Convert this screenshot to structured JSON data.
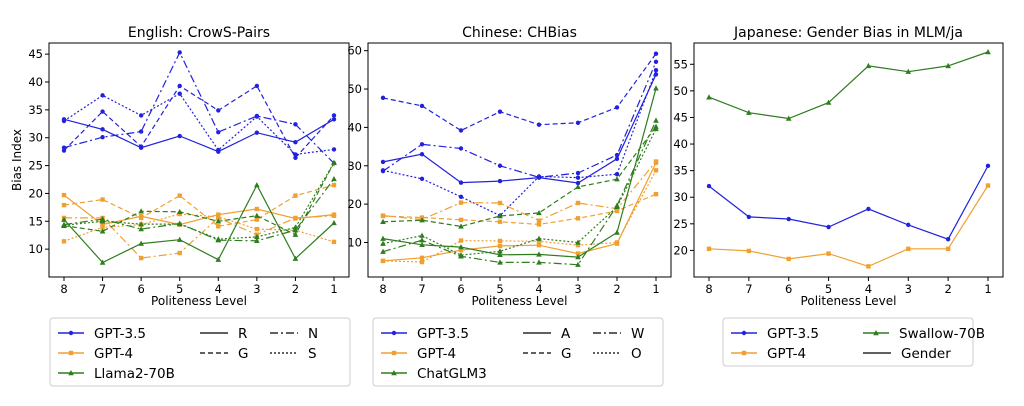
{
  "figure": {
    "y_axis_label": "Bias Index",
    "x_axis_label": "Politeness Level"
  },
  "colors": {
    "gpt35": "#2222dd",
    "gpt4": "#f0a030",
    "third": "#2e7d1e"
  },
  "chart_data": [
    {
      "type": "line",
      "title": "English: CrowS-Pairs",
      "xlabel": "Politeness Level",
      "ylabel": "Bias Index",
      "categories": [
        "8",
        "7",
        "6",
        "5",
        "4",
        "3",
        "2",
        "1"
      ],
      "ylim": [
        5,
        47
      ],
      "yticks": [
        10,
        15,
        20,
        25,
        30,
        35,
        40,
        45
      ],
      "legend_models": [
        "GPT-3.5",
        "GPT-4",
        "Llama2-70B"
      ],
      "legend_styles": [
        "R",
        "G",
        "N",
        "S"
      ],
      "series": [
        {
          "model": "GPT-3.5",
          "style": "R",
          "values": [
            33.3,
            31.5,
            28.2,
            30.3,
            27.5,
            30.9,
            29.2,
            33.3
          ]
        },
        {
          "model": "GPT-3.5",
          "style": "G",
          "values": [
            27.7,
            34.7,
            28.4,
            39.3,
            34.9,
            39.3,
            26.4,
            34.0
          ]
        },
        {
          "model": "GPT-3.5",
          "style": "N",
          "values": [
            28.2,
            30.1,
            31.1,
            45.3,
            31.0,
            33.9,
            32.4,
            25.4
          ]
        },
        {
          "model": "GPT-3.5",
          "style": "S",
          "values": [
            33.0,
            37.6,
            34.0,
            37.9,
            27.8,
            33.8,
            27.0,
            27.9
          ]
        },
        {
          "model": "GPT-4",
          "style": "R",
          "values": [
            19.7,
            14.4,
            15.9,
            14.4,
            16.2,
            17.2,
            15.5,
            16.2
          ]
        },
        {
          "model": "GPT-4",
          "style": "G",
          "values": [
            17.9,
            18.9,
            15.6,
            19.6,
            14.1,
            15.3,
            19.6,
            21.5
          ]
        },
        {
          "model": "GPT-4",
          "style": "N",
          "values": [
            15.6,
            15.6,
            8.4,
            9.3,
            15.6,
            12.6,
            15.6,
            16.0
          ]
        },
        {
          "model": "GPT-4",
          "style": "S",
          "values": [
            11.4,
            13.9,
            14.4,
            16.3,
            15.8,
            13.6,
            13.4,
            11.3
          ]
        },
        {
          "model": "Llama2-70B",
          "style": "R",
          "values": [
            15.3,
            7.6,
            11.0,
            11.7,
            8.1,
            21.5,
            8.3,
            14.7
          ]
        },
        {
          "model": "Llama2-70B",
          "style": "G",
          "values": [
            14.2,
            13.2,
            16.8,
            16.7,
            15.0,
            16.0,
            12.6,
            25.5
          ]
        },
        {
          "model": "Llama2-70B",
          "style": "N",
          "values": [
            14.4,
            15.4,
            13.6,
            14.6,
            11.6,
            11.5,
            13.4,
            22.6
          ]
        },
        {
          "model": "Llama2-70B",
          "style": "S",
          "values": [
            14.3,
            15.0,
            14.5,
            14.5,
            11.8,
            12.2,
            13.9,
            25.5
          ]
        }
      ]
    },
    {
      "type": "line",
      "title": "Chinese: CHBias",
      "xlabel": "Politeness Level",
      "ylabel": "",
      "categories": [
        "8",
        "7",
        "6",
        "5",
        "4",
        "3",
        "2",
        "1"
      ],
      "ylim": [
        1,
        62
      ],
      "yticks": [
        10,
        20,
        30,
        40,
        50,
        60
      ],
      "legend_models": [
        "GPT-3.5",
        "GPT-4",
        "ChatGLM3"
      ],
      "legend_styles": [
        "A",
        "G",
        "W",
        "O"
      ],
      "series": [
        {
          "model": "GPT-3.5",
          "style": "A",
          "values": [
            31.0,
            33.0,
            25.6,
            26.0,
            26.9,
            25.5,
            31.8,
            53.8
          ]
        },
        {
          "model": "GPT-3.5",
          "style": "G",
          "values": [
            47.7,
            45.6,
            39.2,
            44.1,
            40.7,
            41.2,
            45.2,
            59.2
          ]
        },
        {
          "model": "GPT-3.5",
          "style": "W",
          "values": [
            28.6,
            35.6,
            34.5,
            30.0,
            27.0,
            28.1,
            32.8,
            57.1
          ]
        },
        {
          "model": "GPT-3.5",
          "style": "O",
          "values": [
            28.8,
            26.6,
            21.9,
            17.0,
            27.2,
            26.9,
            27.8,
            54.9
          ]
        },
        {
          "model": "GPT-4",
          "style": "A",
          "values": [
            5.2,
            6.0,
            8.0,
            9.1,
            9.3,
            7.1,
            9.7,
            30.8
          ]
        },
        {
          "model": "GPT-4",
          "style": "G",
          "values": [
            16.9,
            16.5,
            15.9,
            15.4,
            14.7,
            16.3,
            18.2,
            22.6
          ]
        },
        {
          "model": "GPT-4",
          "style": "W",
          "values": [
            17.0,
            16.0,
            20.4,
            20.3,
            15.7,
            20.3,
            18.8,
            31.1
          ]
        },
        {
          "model": "GPT-4",
          "style": "O",
          "values": [
            5.2,
            4.9,
            10.5,
            10.4,
            10.3,
            9.3,
            10.0,
            28.8
          ]
        },
        {
          "model": "ChatGLM3",
          "style": "A",
          "values": [
            11.0,
            9.4,
            8.8,
            6.8,
            6.9,
            6.2,
            12.6,
            50.2
          ]
        },
        {
          "model": "ChatGLM3",
          "style": "G",
          "values": [
            15.4,
            15.8,
            14.2,
            16.9,
            17.7,
            24.5,
            26.5,
            40.2
          ]
        },
        {
          "model": "ChatGLM3",
          "style": "W",
          "values": [
            7.6,
            10.6,
            6.4,
            4.8,
            4.8,
            4.2,
            19.6,
            41.8
          ]
        },
        {
          "model": "ChatGLM3",
          "style": "O",
          "values": [
            9.7,
            11.8,
            6.7,
            7.7,
            11.0,
            10.0,
            19.3,
            39.6
          ]
        }
      ]
    },
    {
      "type": "line",
      "title": "Japanese: Gender Bias in MLM/ja",
      "xlabel": "Politeness Level",
      "ylabel": "",
      "categories": [
        "8",
        "7",
        "6",
        "5",
        "4",
        "3",
        "2",
        "1"
      ],
      "ylim": [
        15,
        59
      ],
      "yticks": [
        20,
        25,
        30,
        35,
        40,
        45,
        50,
        55
      ],
      "legend_models": [
        "GPT-3.5",
        "GPT-4",
        "Swallow-70B"
      ],
      "legend_styles": [
        "Gender"
      ],
      "series": [
        {
          "model": "GPT-3.5",
          "style": "Gender",
          "values": [
            32.1,
            26.3,
            25.9,
            24.4,
            27.8,
            24.8,
            22.1,
            35.9
          ]
        },
        {
          "model": "GPT-4",
          "style": "Gender",
          "values": [
            20.3,
            19.9,
            18.4,
            19.4,
            17.0,
            20.3,
            20.3,
            32.2
          ]
        },
        {
          "model": "Swallow-70B",
          "style": "Gender",
          "values": [
            48.8,
            45.9,
            44.8,
            47.8,
            54.7,
            53.6,
            54.7,
            57.3
          ]
        }
      ]
    }
  ]
}
